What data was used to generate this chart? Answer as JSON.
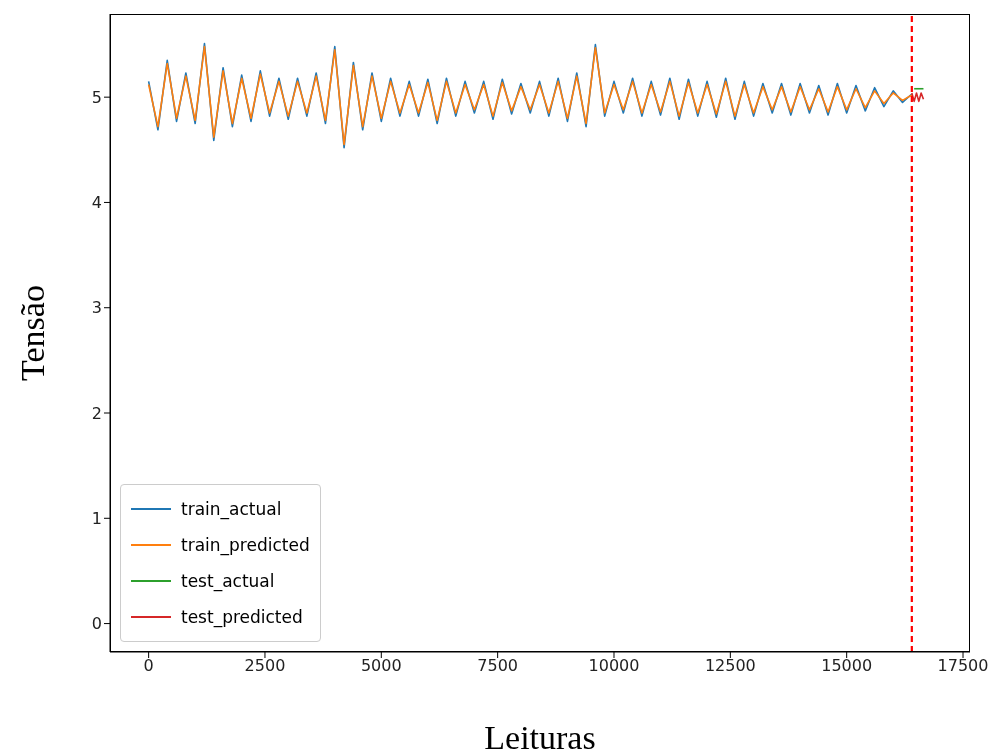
{
  "chart_data": {
    "type": "line",
    "xlabel": "Leituras",
    "ylabel": "Tensão",
    "x": [
      0,
      200,
      400,
      600,
      800,
      1000,
      1200,
      1400,
      1600,
      1800,
      2000,
      2200,
      2400,
      2600,
      2800,
      3000,
      3200,
      3400,
      3600,
      3800,
      4000,
      4200,
      4400,
      4600,
      4800,
      5000,
      5200,
      5400,
      5600,
      5800,
      6000,
      6200,
      6400,
      6600,
      6800,
      7000,
      7200,
      7400,
      7600,
      7800,
      8000,
      8200,
      8400,
      8600,
      8800,
      9000,
      9200,
      9400,
      9600,
      9800,
      10000,
      10200,
      10400,
      10600,
      10800,
      11000,
      11200,
      11400,
      11600,
      11800,
      12000,
      12200,
      12400,
      12600,
      12800,
      13000,
      13200,
      13400,
      13600,
      13800,
      14000,
      14200,
      14400,
      14600,
      14800,
      15000,
      15200,
      15400,
      15600,
      15800,
      16000,
      16200,
      16400
    ],
    "series": [
      {
        "name": "train_actual",
        "color": "#1f77b4",
        "values": [
          5.15,
          4.69,
          5.35,
          4.77,
          5.23,
          4.75,
          5.51,
          4.59,
          5.28,
          4.72,
          5.21,
          4.77,
          5.25,
          4.82,
          5.18,
          4.79,
          5.18,
          4.82,
          5.23,
          4.75,
          5.48,
          4.52,
          5.33,
          4.69,
          5.23,
          4.77,
          5.18,
          4.82,
          5.15,
          4.82,
          5.17,
          4.75,
          5.18,
          4.82,
          5.15,
          4.85,
          5.15,
          4.79,
          5.17,
          4.84,
          5.13,
          4.85,
          5.15,
          4.82,
          5.18,
          4.77,
          5.23,
          4.72,
          5.5,
          4.82,
          5.15,
          4.85,
          5.18,
          4.82,
          5.15,
          4.83,
          5.18,
          4.79,
          5.17,
          4.82,
          5.15,
          4.81,
          5.18,
          4.79,
          5.15,
          4.82,
          5.13,
          4.85,
          5.13,
          4.83,
          5.13,
          4.85,
          5.11,
          4.83,
          5.13,
          4.85,
          5.11,
          4.87,
          5.09,
          4.91,
          5.06,
          4.95,
          5.03
        ]
      },
      {
        "name": "train_predicted",
        "color": "#ff7f0e",
        "values": [
          5.12,
          4.72,
          5.32,
          4.8,
          5.2,
          4.78,
          5.48,
          4.62,
          5.25,
          4.75,
          5.18,
          4.8,
          5.22,
          4.85,
          5.15,
          4.82,
          5.15,
          4.85,
          5.2,
          4.78,
          5.45,
          4.55,
          5.3,
          4.72,
          5.2,
          4.8,
          5.15,
          4.85,
          5.12,
          4.85,
          5.14,
          4.78,
          5.15,
          4.85,
          5.12,
          4.88,
          5.12,
          4.82,
          5.14,
          4.87,
          5.1,
          4.88,
          5.12,
          4.85,
          5.15,
          4.8,
          5.2,
          4.75,
          5.47,
          4.85,
          5.12,
          4.88,
          5.15,
          4.85,
          5.12,
          4.86,
          5.15,
          4.82,
          5.14,
          4.85,
          5.12,
          4.84,
          5.15,
          4.82,
          5.12,
          4.85,
          5.1,
          4.88,
          5.1,
          4.86,
          5.1,
          4.88,
          5.08,
          4.86,
          5.1,
          4.88,
          5.08,
          4.9,
          5.06,
          4.94,
          5.04,
          4.97,
          5.02
        ]
      },
      {
        "name": "test_actual",
        "color": "#2ca02c",
        "x": [
          16450,
          16650
        ],
        "values": [
          5.08,
          5.08
        ]
      },
      {
        "name": "test_predicted",
        "color": "#d62728",
        "x": [
          16400,
          16450,
          16500,
          16550,
          16600,
          16650
        ],
        "values": [
          5.04,
          4.96,
          5.04,
          4.96,
          5.04,
          4.98
        ]
      }
    ],
    "xlim": [
      -830,
      17650
    ],
    "xticks": [
      0,
      2500,
      5000,
      7500,
      10000,
      12500,
      15000,
      17500
    ],
    "ylim": [
      -0.27,
      5.79
    ],
    "yticks": [
      0,
      1,
      2,
      3,
      4,
      5
    ],
    "ref_lines": [
      {
        "axis": "x",
        "value": 16400,
        "color": "#ff0000",
        "line_style": "dashed"
      }
    ],
    "legend": "bottom left",
    "grid": false
  }
}
